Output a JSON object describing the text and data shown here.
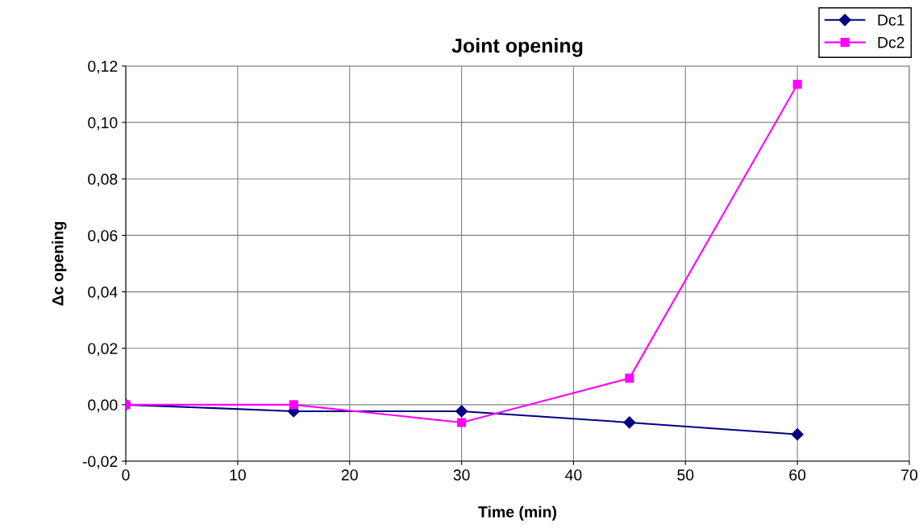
{
  "chart_data": {
    "type": "line",
    "title": "Joint opening",
    "xlabel": "Time (min)",
    "ylabel": "Δc opening",
    "x": [
      0,
      15,
      30,
      45,
      60
    ],
    "series": [
      {
        "name": "Dc1",
        "color": "#000080",
        "marker": "diamond",
        "values": [
          0,
          -0.0023,
          -0.0023,
          -0.0063,
          -0.0105
        ]
      },
      {
        "name": "Dc2",
        "color": "#ff00ff",
        "marker": "square",
        "values": [
          0,
          0,
          -0.0063,
          0.0094,
          0.1135
        ]
      }
    ],
    "xlim": [
      0,
      70
    ],
    "xticks": [
      0,
      10,
      20,
      30,
      40,
      50,
      60,
      70
    ],
    "ylim": [
      -0.02,
      0.12
    ],
    "yticks": [
      {
        "value": -0.02,
        "label": "-0,02"
      },
      {
        "value": 0,
        "label": "0,00"
      },
      {
        "value": 0.02,
        "label": "0,02"
      },
      {
        "value": 0.04,
        "label": "0,04"
      },
      {
        "value": 0.06,
        "label": "0,06"
      },
      {
        "value": 0.08,
        "label": "0,08"
      },
      {
        "value": 0.1,
        "label": "0,10"
      },
      {
        "value": 0.12,
        "label": "0,12"
      }
    ],
    "grid": true,
    "legend": "top right",
    "line_style": "solid"
  }
}
